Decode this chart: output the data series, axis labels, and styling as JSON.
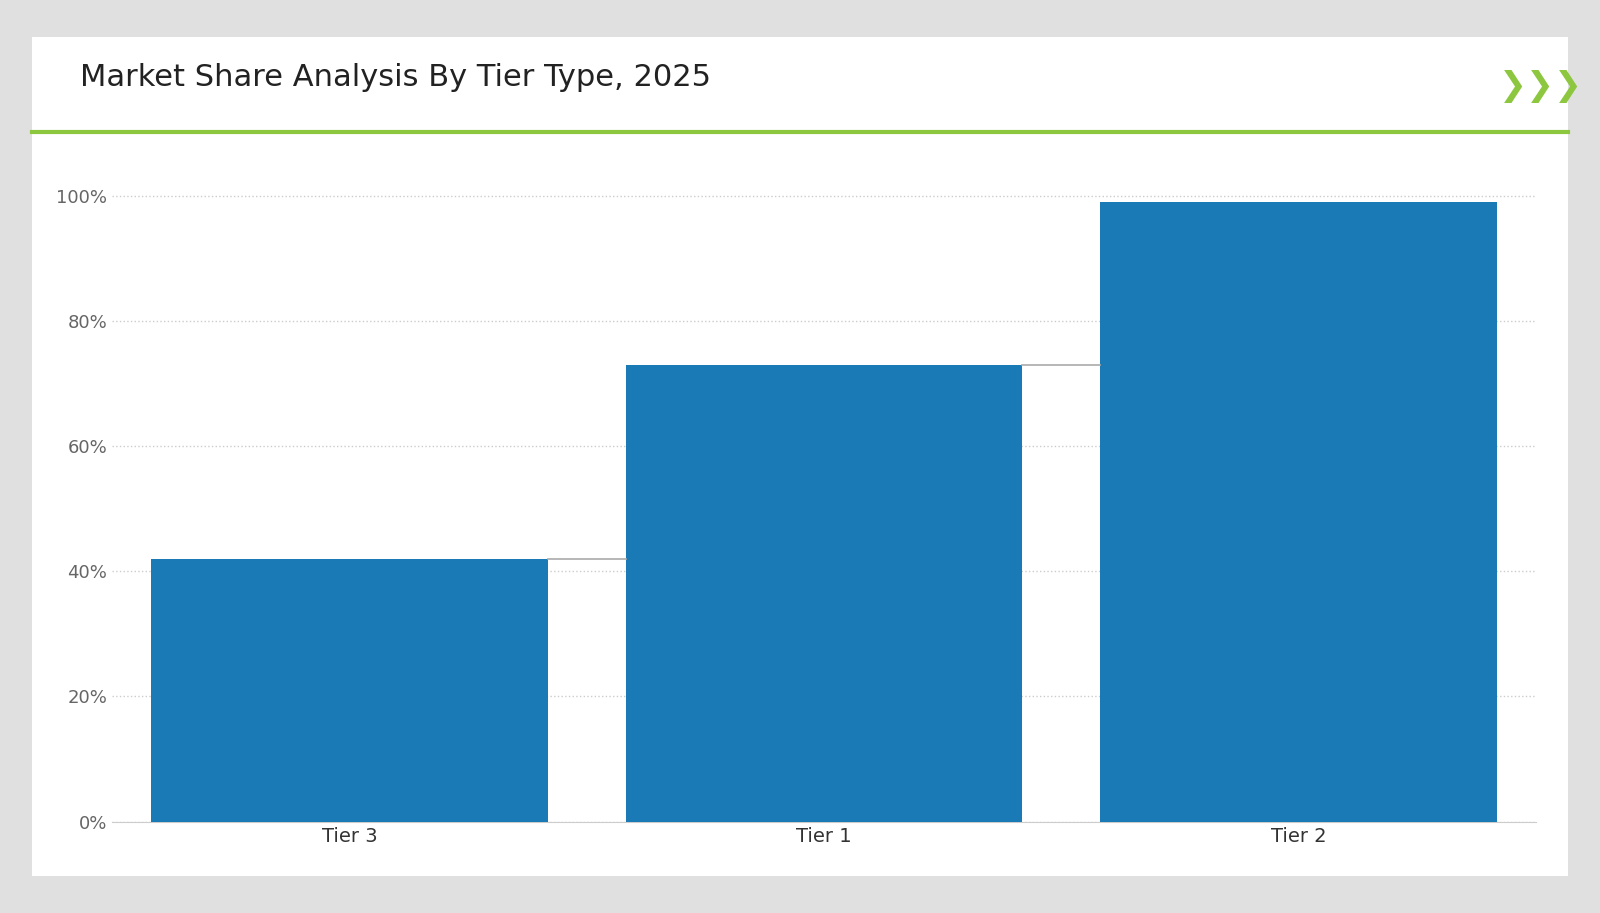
{
  "title": "Market Share Analysis By Tier Type, 2025",
  "categories": [
    "Tier 3",
    "Tier 1",
    "Tier 2"
  ],
  "values": [
    42,
    73,
    99
  ],
  "bar_color": "#1a7ab5",
  "connector_color": "#aaaaaa",
  "outer_background": "#e0e0e0",
  "chart_bg": "#ffffff",
  "accent_line_color": "#8dc63f",
  "title_color": "#222222",
  "tick_label_color": "#666666",
  "x_tick_color": "#333333",
  "grid_color": "#cccccc",
  "ylim": [
    0,
    105
  ],
  "yticks": [
    0,
    20,
    40,
    60,
    80,
    100
  ],
  "ytick_labels": [
    "0%",
    "20%",
    "40%",
    "60%",
    "80%",
    "100%"
  ],
  "title_fontsize": 22,
  "tick_fontsize": 13,
  "xtick_fontsize": 14,
  "bar_width": 0.38,
  "arrow_color": "#8dc63f"
}
